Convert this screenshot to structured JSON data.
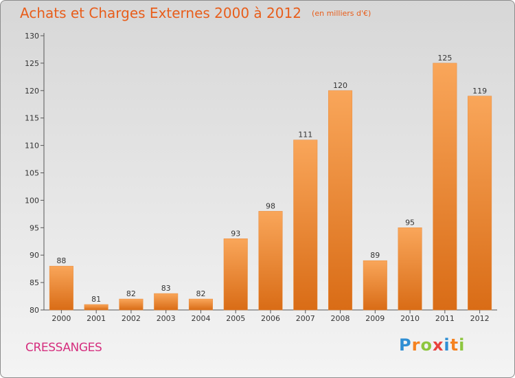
{
  "header": {
    "title": "Achats et Charges Externes 2000 à 2012",
    "unit": "(en milliers d'€)"
  },
  "footer": {
    "town": "CRESSANGES",
    "logo_letters": [
      "P",
      "r",
      "o",
      "x",
      "i",
      "t",
      "i"
    ]
  },
  "colors": {
    "title": "#e85d1a",
    "town": "#d52e7e",
    "bar_top": "#f9a65a",
    "bar_bottom": "#d96c16",
    "logo": [
      "#2f8ed3",
      "#f58220",
      "#8dc63f",
      "#e8423d",
      "#2f8ed3",
      "#f58220",
      "#8dc63f"
    ]
  },
  "chart_data": {
    "type": "bar",
    "title": "Achats et Charges Externes 2000 à 2012",
    "subtitle": "(en milliers d'€)",
    "categories": [
      "2000",
      "2001",
      "2002",
      "2003",
      "2004",
      "2005",
      "2006",
      "2007",
      "2008",
      "2009",
      "2010",
      "2011",
      "2012"
    ],
    "values": [
      88,
      81,
      82,
      83,
      82,
      93,
      98,
      111,
      120,
      89,
      95,
      125,
      119
    ],
    "ylim": [
      80,
      130
    ],
    "yticks": [
      80,
      85,
      90,
      95,
      100,
      105,
      110,
      115,
      120,
      125,
      130
    ],
    "grid": false,
    "legend": "none"
  }
}
